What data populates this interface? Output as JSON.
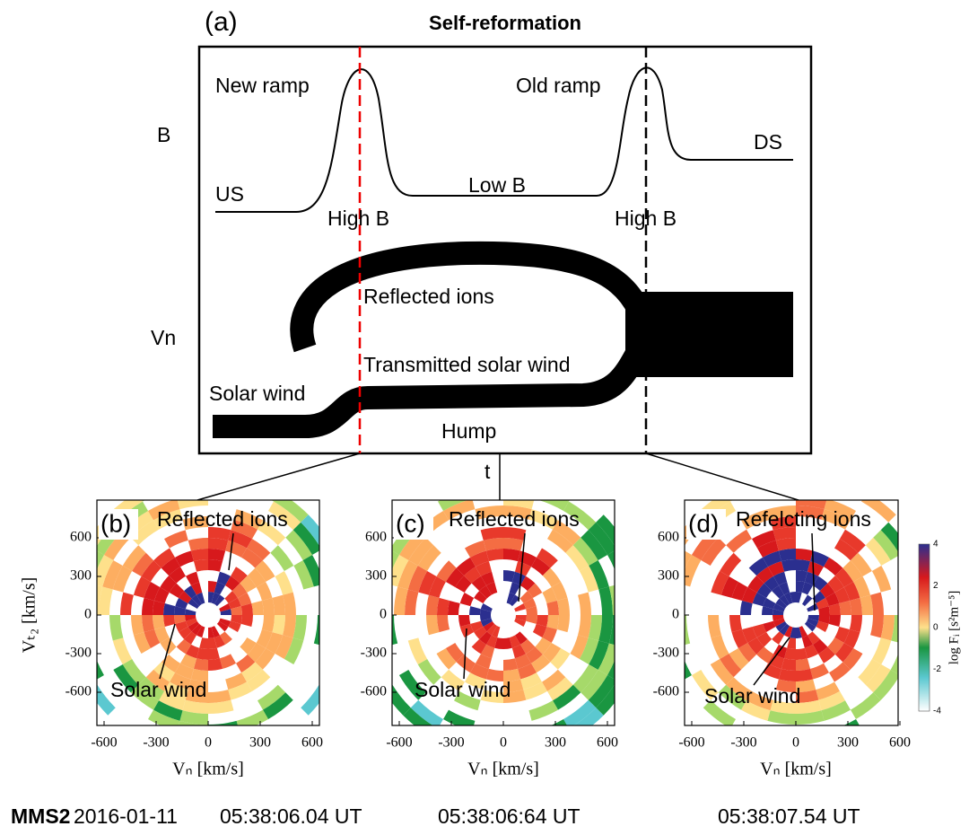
{
  "panel_a": {
    "label": "(a)",
    "title": "Self-reformation",
    "y_labels": [
      "B",
      "Vn"
    ],
    "x_label": "t",
    "annotations": [
      "New ramp",
      "Old ramp",
      "DS",
      "US",
      "Low B",
      "High B",
      "High B",
      "Reflected ions",
      "Transmitted solar wind",
      "Solar wind",
      "Hump"
    ]
  },
  "panels": [
    {
      "label": "(b)",
      "top_annotation": "Reflected ions",
      "bottom_annotation": "Solar wind",
      "time": "05:38:06.04 UT"
    },
    {
      "label": "(c)",
      "top_annotation": "Reflected ions",
      "bottom_annotation": "Solar wind",
      "time": "05:38:06:64 UT"
    },
    {
      "label": "(d)",
      "top_annotation": "Refelcting ions",
      "bottom_annotation": "Solar wind",
      "time": "05:38:07.54 UT"
    }
  ],
  "axes": {
    "xticks": [
      "-600",
      "-300",
      "0",
      "300",
      "600"
    ],
    "yticks": [
      "600",
      "300",
      "0",
      "-300",
      "-600"
    ],
    "x_label": "Vₙ [km/s]",
    "y_label": "Vₜ₂ [km/s]"
  },
  "colorbar": {
    "label": "log Fᵢ [s²m⁻⁵]",
    "ticks": [
      "4",
      "2",
      "0",
      "-2",
      "-4"
    ]
  },
  "footer": {
    "spacecraft": "MMS2",
    "date": "2016-01-11"
  }
}
